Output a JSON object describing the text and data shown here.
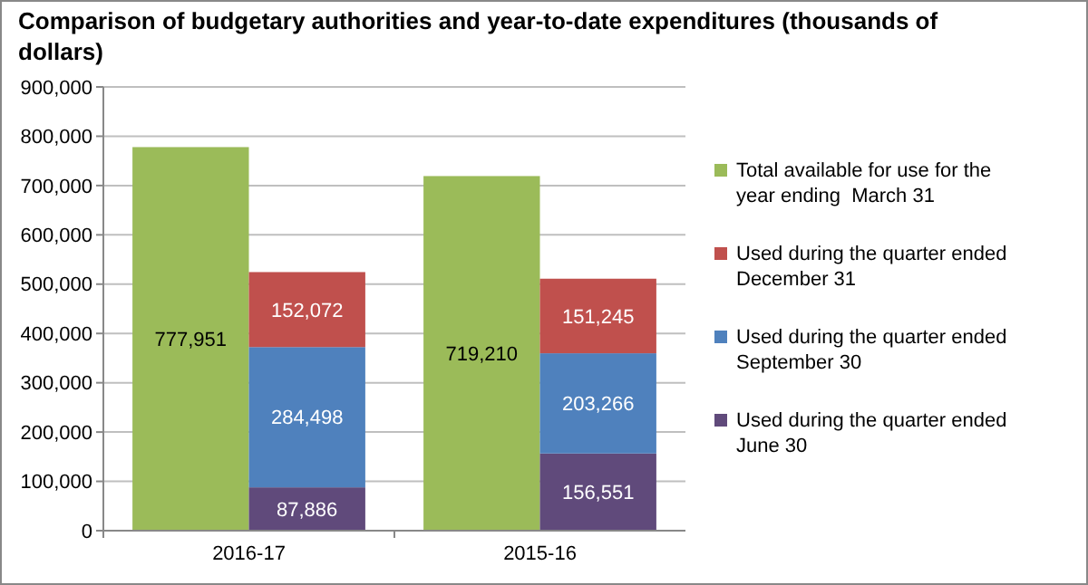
{
  "chart_data": {
    "type": "bar",
    "title": "Comparison of budgetary authorities and year-to-date expenditures (thousands of dollars)",
    "categories": [
      "2016-17",
      "2015-16"
    ],
    "series": [
      {
        "name": "Total available for use for the year ending  March 31",
        "color": "#9bbb59",
        "values": [
          777951,
          719210
        ],
        "value_labels": [
          "777,951",
          "719,210"
        ]
      },
      {
        "name": "Used during the quarter ended June 30",
        "color": "#604a7b",
        "base": [
          0,
          0
        ],
        "values": [
          87886,
          156551
        ],
        "value_labels": [
          "87,886",
          "156,551"
        ]
      },
      {
        "name": "Used during the quarter ended September 30",
        "color": "#4f81bd",
        "base": [
          87886,
          156551
        ],
        "values": [
          284498,
          203266
        ],
        "value_labels": [
          "284,498",
          "203,266"
        ]
      },
      {
        "name": "Used during the quarter ended December 31",
        "color": "#c0504d",
        "base": [
          372384,
          359817
        ],
        "values": [
          152072,
          151245
        ],
        "value_labels": [
          "152,072",
          "151,245"
        ]
      }
    ],
    "ylim": [
      0,
      900000
    ],
    "yticks": [
      {
        "value": 0,
        "label": "0"
      },
      {
        "value": 100000,
        "label": "100,000"
      },
      {
        "value": 200000,
        "label": "200,000"
      },
      {
        "value": 300000,
        "label": "300,000"
      },
      {
        "value": 400000,
        "label": "400,000"
      },
      {
        "value": 500000,
        "label": "500,000"
      },
      {
        "value": 600000,
        "label": "600,000"
      },
      {
        "value": 700000,
        "label": "700,000"
      },
      {
        "value": 800000,
        "label": "800,000"
      },
      {
        "value": 900000,
        "label": "900,000"
      }
    ],
    "grid": "y",
    "legend": "right"
  }
}
